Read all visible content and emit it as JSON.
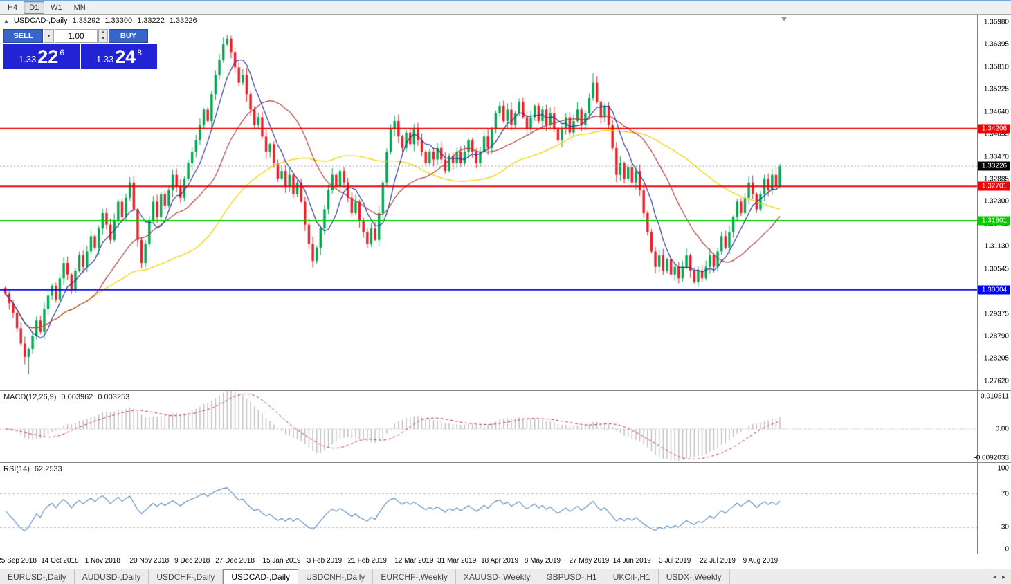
{
  "toolbar": {
    "timeframes": [
      {
        "label": "H4",
        "active": false
      },
      {
        "label": "D1",
        "active": true
      },
      {
        "label": "W1",
        "active": false
      },
      {
        "label": "MN",
        "active": false
      }
    ]
  },
  "chart": {
    "header": {
      "collapse": "▲",
      "title": "USDCAD-,Daily",
      "open": "1.33292",
      "high": "1.33300",
      "low": "1.33222",
      "close": "1.33226"
    }
  },
  "trade_panel": {
    "sell_label": "SELL",
    "buy_label": "BUY",
    "volume": "1.00",
    "sell_price": {
      "prefix": "1.33",
      "big": "22",
      "sup": "6"
    },
    "buy_price": {
      "prefix": "1.33",
      "big": "24",
      "sup": "8"
    }
  },
  "price_axis": {
    "top_value": 1.3698,
    "bottom_value": 1.2762,
    "labels": [
      "1.36980",
      "1.36395",
      "1.35810",
      "1.35225",
      "1.34640",
      "1.34055",
      "1.33470",
      "1.32885",
      "1.32300",
      "1.31715",
      "1.31130",
      "1.30545",
      "1.29960",
      "1.29375",
      "1.28790",
      "1.28205",
      "1.27620"
    ]
  },
  "hlines": [
    {
      "label": "1.34206",
      "value": 1.34206,
      "color": "#f40000",
      "style": "line"
    },
    {
      "label": "1.33226",
      "value": 1.33226,
      "color": "#000000",
      "style": "current"
    },
    {
      "label": "1.32701",
      "value": 1.32701,
      "color": "#f40000",
      "style": "line"
    },
    {
      "label": "1.31801",
      "value": 1.31801,
      "color": "#00cc00",
      "style": "line"
    },
    {
      "label": "1.30004",
      "value": 1.30004,
      "color": "#0000f0",
      "style": "line"
    }
  ],
  "macd": {
    "label": "MACD(12,26,9)",
    "value_main": "0.003962",
    "value_signal": "0.003253",
    "axis": [
      "0.010311",
      "0.00",
      "-0.0092033"
    ]
  },
  "rsi": {
    "label": "RSI(14)",
    "value": "62.2533",
    "axis": [
      "100",
      "70",
      "30",
      "0"
    ],
    "levels": [
      70,
      30
    ]
  },
  "date_axis": {
    "labels": [
      "25 Sep 2018",
      "14 Oct 2018",
      "1 Nov 2018",
      "20 Nov 2018",
      "9 Dec 2018",
      "27 Dec 2018",
      "15 Jan 2019",
      "3 Feb 2019",
      "21 Feb 2019",
      "12 Mar 2019",
      "31 Mar 2019",
      "18 Apr 2019",
      "8 May 2019",
      "27 May 2019",
      "14 Jun 2019",
      "3 Jul 2019",
      "22 Jul 2019",
      "9 Aug 2019"
    ],
    "tick_indices": [
      3,
      14,
      25,
      37,
      48,
      59,
      71,
      82,
      93,
      105,
      116,
      127,
      138,
      150,
      161,
      172,
      183,
      194
    ]
  },
  "tabs": {
    "items": [
      "EURUSD-,Daily",
      "AUDUSD-,Daily",
      "USDCHF-,Daily",
      "USDCAD-,Daily",
      "USDCNH-,Daily",
      "EURCHF-,Weekly",
      "XAUUSD-,Weekly",
      "GBPUSD-,H1",
      "UKOil-,H1",
      "USDX-,Weekly"
    ],
    "active_index": 3
  },
  "chart_data": {
    "type": "candlestick",
    "symbol": "USDCAD",
    "timeframe": "Daily",
    "title": "USDCAD-,Daily",
    "ylim": [
      1.2762,
      1.3698
    ],
    "closes": [
      1.299,
      1.2965,
      1.294,
      1.29,
      1.286,
      1.2825,
      1.2845,
      1.288,
      1.292,
      1.289,
      1.295,
      1.2985,
      1.301,
      1.2975,
      1.303,
      1.307,
      1.304,
      1.3,
      1.305,
      1.309,
      1.306,
      1.31,
      1.314,
      1.311,
      1.316,
      1.32,
      1.317,
      1.313,
      1.318,
      1.323,
      1.319,
      1.324,
      1.328,
      1.321,
      1.313,
      1.307,
      1.312,
      1.318,
      1.323,
      1.319,
      1.325,
      1.322,
      1.326,
      1.33,
      1.327,
      1.324,
      1.329,
      1.333,
      1.336,
      1.339,
      1.343,
      1.347,
      1.344,
      1.351,
      1.356,
      1.36,
      1.364,
      1.3655,
      1.362,
      1.358,
      1.354,
      1.356,
      1.351,
      1.347,
      1.343,
      1.345,
      1.34,
      1.336,
      1.338,
      1.333,
      1.329,
      1.331,
      1.327,
      1.33,
      1.325,
      1.328,
      1.323,
      1.317,
      1.312,
      1.3075,
      1.311,
      1.316,
      1.321,
      1.326,
      1.33,
      1.327,
      1.331,
      1.328,
      1.324,
      1.32,
      1.323,
      1.318,
      1.315,
      1.312,
      1.316,
      1.313,
      1.32,
      1.328,
      1.336,
      1.342,
      1.344,
      1.34,
      1.337,
      1.341,
      1.338,
      1.342,
      1.339,
      1.336,
      1.333,
      1.336,
      1.334,
      1.337,
      1.334,
      1.331,
      1.335,
      1.333,
      1.336,
      1.333,
      1.336,
      1.339,
      1.336,
      1.333,
      1.336,
      1.34,
      1.337,
      1.342,
      1.346,
      1.348,
      1.344,
      1.347,
      1.343,
      1.346,
      1.349,
      1.345,
      1.342,
      1.345,
      1.348,
      1.344,
      1.347,
      1.343,
      1.346,
      1.342,
      1.339,
      1.342,
      1.345,
      1.341,
      1.344,
      1.347,
      1.343,
      1.346,
      1.35,
      1.354,
      1.349,
      1.345,
      1.348,
      1.343,
      1.337,
      1.33,
      1.333,
      1.329,
      1.332,
      1.328,
      1.331,
      1.326,
      1.32,
      1.315,
      1.31,
      1.306,
      1.309,
      1.305,
      1.308,
      1.304,
      1.306,
      1.303,
      1.306,
      1.309,
      1.305,
      1.302,
      1.305,
      1.303,
      1.306,
      1.309,
      1.306,
      1.31,
      1.314,
      1.311,
      1.315,
      1.319,
      1.323,
      1.32,
      1.324,
      1.328,
      1.325,
      1.321,
      1.325,
      1.329,
      1.326,
      1.33,
      1.327,
      1.33226
    ],
    "wick_overrides": {
      "6": {
        "low": 1.278
      },
      "57": {
        "high": 1.3665
      },
      "79": {
        "low": 1.3058
      },
      "151": {
        "high": 1.3565
      },
      "177": {
        "low": 1.3016
      }
    },
    "ma_periods": {
      "fast": 7,
      "medium": 21,
      "slow": 50
    },
    "colors": {
      "up": "#00a651",
      "down": "#ee1c25",
      "ma_fast": "#283593",
      "ma_medium": "#b23b3b",
      "ma_slow": "#f2d200",
      "macd_bar": "#bcbcbc",
      "macd_signal": "#cc3333",
      "rsi": "#4f86c0",
      "current_line": "#9a9a9a"
    }
  }
}
